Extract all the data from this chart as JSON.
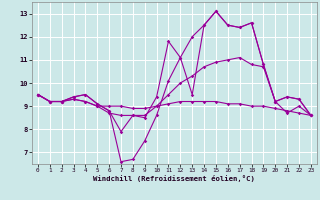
{
  "background_color": "#cce8e8",
  "grid_color": "#ffffff",
  "line_color": "#990099",
  "xlabel": "Windchill (Refroidissement éolien,°C)",
  "ylim": [
    6.5,
    13.5
  ],
  "xlim": [
    -0.5,
    23.5
  ],
  "yticks": [
    7,
    8,
    9,
    10,
    11,
    12,
    13
  ],
  "xticks": [
    0,
    1,
    2,
    3,
    4,
    5,
    6,
    7,
    8,
    9,
    10,
    11,
    12,
    13,
    14,
    15,
    16,
    17,
    18,
    19,
    20,
    21,
    22,
    23
  ],
  "lines": [
    {
      "x": [
        0,
        1,
        2,
        3,
        4,
        5,
        6,
        7,
        8,
        9,
        10,
        11,
        12,
        13,
        14,
        15,
        16,
        17,
        18,
        19,
        20,
        21,
        22,
        23
      ],
      "y": [
        9.5,
        9.2,
        9.2,
        9.4,
        9.5,
        9.1,
        8.8,
        7.9,
        8.6,
        8.5,
        9.4,
        11.8,
        11.1,
        9.5,
        12.5,
        13.1,
        12.5,
        12.4,
        12.6,
        10.8,
        9.2,
        9.4,
        9.3,
        8.6
      ]
    },
    {
      "x": [
        0,
        1,
        2,
        3,
        4,
        5,
        6,
        7,
        8,
        9,
        10,
        11,
        12,
        13,
        14,
        15,
        16,
        17,
        18,
        19,
        20,
        21,
        22,
        23
      ],
      "y": [
        9.5,
        9.2,
        9.2,
        9.4,
        9.5,
        9.1,
        8.8,
        6.6,
        6.7,
        7.5,
        8.6,
        10.1,
        11.1,
        12.0,
        12.5,
        13.1,
        12.5,
        12.4,
        12.6,
        10.8,
        9.2,
        9.4,
        9.3,
        8.6
      ]
    },
    {
      "x": [
        0,
        1,
        2,
        3,
        4,
        5,
        6,
        7,
        8,
        9,
        10,
        11,
        12,
        13,
        14,
        15,
        16,
        17,
        18,
        19,
        20,
        21,
        22,
        23
      ],
      "y": [
        9.5,
        9.2,
        9.2,
        9.3,
        9.2,
        9.0,
        8.7,
        8.6,
        8.6,
        8.6,
        9.0,
        9.5,
        10.0,
        10.3,
        10.7,
        10.9,
        11.0,
        11.1,
        10.8,
        10.7,
        9.2,
        8.7,
        9.0,
        8.6
      ]
    },
    {
      "x": [
        0,
        1,
        2,
        3,
        4,
        5,
        6,
        7,
        8,
        9,
        10,
        11,
        12,
        13,
        14,
        15,
        16,
        17,
        18,
        19,
        20,
        21,
        22,
        23
      ],
      "y": [
        9.5,
        9.2,
        9.2,
        9.3,
        9.2,
        9.0,
        9.0,
        9.0,
        8.9,
        8.9,
        9.0,
        9.1,
        9.2,
        9.2,
        9.2,
        9.2,
        9.1,
        9.1,
        9.0,
        9.0,
        8.9,
        8.8,
        8.7,
        8.6
      ]
    }
  ]
}
